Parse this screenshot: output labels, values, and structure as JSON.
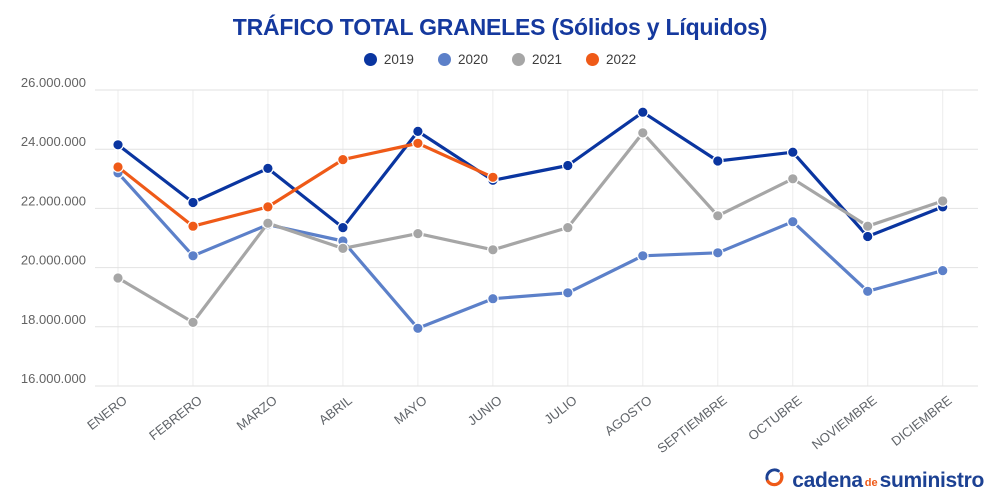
{
  "colors": {
    "title": "#15399E",
    "brand_blue": "#1C4193",
    "brand_orange": "#EF5A18",
    "grid_horizontal": "#E2E2E2",
    "grid_vertical": "#ECECEC",
    "axis_label": "#5F6368"
  },
  "chart_data": {
    "type": "line",
    "title": "TRÁFICO TOTAL GRANELES (Sólidos y Líquidos)",
    "categories": [
      "ENERO",
      "FEBRERO",
      "MARZO",
      "ABRIL",
      "MAYO",
      "JUNIO",
      "JULIO",
      "AGOSTO",
      "SEPTIEMBRE",
      "OCTUBRE",
      "NOVIEMBRE",
      "DICIEMBRE"
    ],
    "series": [
      {
        "name": "2019",
        "color": "#0A35A0",
        "values": [
          24150000,
          22200000,
          23350000,
          21350000,
          24600000,
          22950000,
          23450000,
          25250000,
          23600000,
          23900000,
          21050000,
          22050000
        ]
      },
      {
        "name": "2020",
        "color": "#5C80C9",
        "values": [
          23200000,
          20400000,
          21450000,
          20900000,
          17950000,
          18950000,
          19150000,
          20400000,
          20500000,
          21550000,
          19200000,
          19900000
        ]
      },
      {
        "name": "2021",
        "color": "#A6A6A6",
        "values": [
          19650000,
          18150000,
          21500000,
          20650000,
          21150000,
          20600000,
          21350000,
          24550000,
          21750000,
          23000000,
          21400000,
          22250000
        ]
      },
      {
        "name": "2022",
        "color": "#EF5A18",
        "values": [
          23400000,
          21400000,
          22050000,
          23650000,
          24200000,
          23050000,
          null,
          null,
          null,
          null,
          null,
          null
        ]
      }
    ],
    "ylim": [
      16000000,
      26000000
    ],
    "ytick_step": 2000000,
    "yticks": [
      "16.000.000",
      "18.000.000",
      "20.000.000",
      "22.000.000",
      "24.000.000",
      "26.000.000"
    ],
    "grid": true,
    "legend_position": "top"
  },
  "footer": {
    "brand_word1": "cadena",
    "brand_word2": "de",
    "brand_word3": "suministro"
  }
}
